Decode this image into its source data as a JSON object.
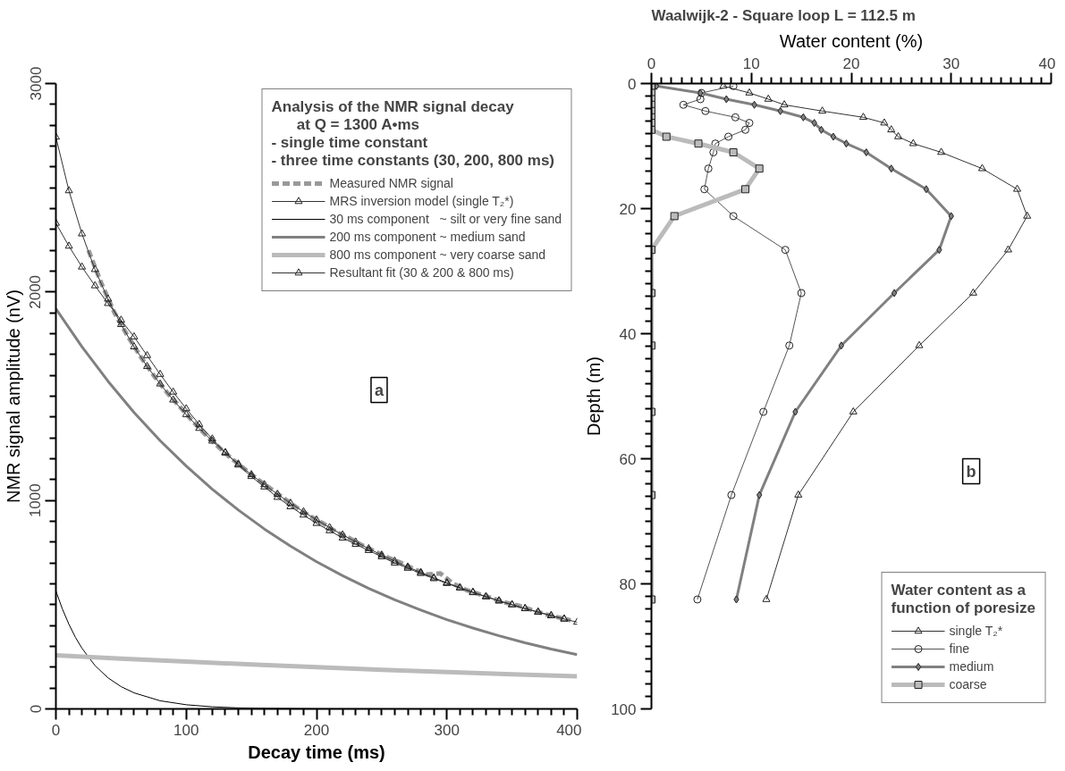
{
  "chart_data": [
    {
      "type": "line",
      "xlabel": "Decay time (ms)",
      "ylabel": "NMR signal amplitude (nV)",
      "legend_title": "Analysis of the NMR signal decay\n      at Q = 1300 A•ms\n- single time constant\n- three time constants (30, 200, 800 ms)",
      "xlim": [
        0,
        400
      ],
      "xticks": [
        0,
        100,
        200,
        300,
        400
      ],
      "ylim": [
        0,
        3000
      ],
      "yticks": [
        0,
        1000,
        2000,
        3000
      ],
      "grid": false,
      "legend": "top right",
      "annotations": [
        "a"
      ],
      "series": [
        {
          "name": "Measured NMR signal",
          "color": "#999999",
          "line_style": "dashed",
          "marker": "none",
          "x": [
            25,
            35,
            45,
            55,
            65,
            75,
            85,
            95,
            105,
            115,
            125,
            135,
            145,
            155,
            165,
            175,
            185,
            195,
            205,
            215,
            225,
            235,
            245,
            255,
            265,
            275,
            285,
            295,
            305,
            315,
            325,
            335,
            345,
            355,
            365,
            375,
            385,
            395
          ],
          "values": [
            2200,
            2040,
            1900,
            1790,
            1690,
            1600,
            1520,
            1450,
            1380,
            1315,
            1255,
            1200,
            1150,
            1100,
            1055,
            1010,
            965,
            925,
            890,
            850,
            820,
            785,
            755,
            725,
            700,
            670,
            645,
            650,
            600,
            570,
            550,
            530,
            510,
            495,
            475,
            455,
            440,
            425
          ]
        },
        {
          "name": "MRS inversion model (single T₂*)",
          "color": "#333333",
          "line_style": "solid",
          "marker": "triangle",
          "x": [
            0,
            10,
            20,
            30,
            40,
            50,
            60,
            70,
            80,
            90,
            100,
            110,
            120,
            130,
            140,
            150,
            160,
            170,
            180,
            190,
            200,
            210,
            220,
            230,
            240,
            250,
            260,
            270,
            280,
            290,
            300,
            310,
            320,
            330,
            340,
            350,
            360,
            370,
            380,
            390
          ],
          "values": [
            2330,
            2220,
            2120,
            2030,
            1945,
            1865,
            1785,
            1695,
            1605,
            1520,
            1440,
            1365,
            1295,
            1230,
            1170,
            1115,
            1065,
            1015,
            970,
            930,
            890,
            855,
            820,
            790,
            760,
            730,
            700,
            675,
            650,
            625,
            602,
            580,
            558,
            538,
            518,
            500,
            482,
            465,
            448,
            432
          ]
        },
        {
          "name": "30 ms component   ~ silt or very fine sand",
          "color": "#000000",
          "line_style": "solid",
          "marker": "none",
          "x": [
            0,
            5,
            10,
            15,
            20,
            30,
            40,
            50,
            60,
            80,
            100,
            120,
            140,
            160,
            200,
            300,
            400
          ],
          "values": [
            566,
            479,
            406,
            343,
            291,
            208,
            149,
            107,
            77,
            39,
            20,
            10,
            5,
            3,
            1,
            0,
            0
          ]
        },
        {
          "name": "200 ms component ~ medium sand",
          "color": "#808080",
          "line_style": "solid",
          "marker": "none",
          "x": [
            0,
            20,
            40,
            60,
            80,
            100,
            120,
            140,
            160,
            180,
            200,
            220,
            240,
            260,
            280,
            300,
            320,
            340,
            360,
            380,
            400
          ],
          "values": [
            1920,
            1737,
            1572,
            1422,
            1287,
            1165,
            1054,
            954,
            863,
            781,
            706,
            639,
            578,
            523,
            474,
            428,
            388,
            351,
            317,
            287,
            260
          ]
        },
        {
          "name": "800 ms component ~ very coarse sand",
          "color": "#bbbbbb",
          "line_style": "solid",
          "marker": "none",
          "x": [
            0,
            50,
            100,
            150,
            200,
            250,
            300,
            350,
            400
          ],
          "values": [
            257,
            241,
            227,
            213,
            200,
            188,
            177,
            166,
            156
          ]
        },
        {
          "name": "Resultant fit (30 & 200 & 800 ms)",
          "color": "#333333",
          "line_style": "solid",
          "marker": "triangle",
          "x": [
            0,
            10,
            20,
            30,
            40,
            50,
            60,
            70,
            80,
            90,
            100,
            110,
            120,
            130,
            140,
            150,
            160,
            170,
            180,
            190,
            200,
            210,
            220,
            230,
            240,
            250,
            260,
            270,
            280,
            290,
            300,
            310,
            320,
            330,
            340,
            350,
            360,
            370,
            380,
            390,
            400
          ],
          "values": [
            2743,
            2486,
            2279,
            2108,
            1966,
            1844,
            1737,
            1643,
            1559,
            1482,
            1412,
            1346,
            1285,
            1228,
            1175,
            1124,
            1076,
            1030,
            987,
            946,
            907,
            870,
            835,
            801,
            769,
            738,
            709,
            681,
            655,
            629,
            605,
            582,
            560,
            539,
            519,
            500,
            481,
            464,
            447,
            431,
            416
          ]
        }
      ]
    },
    {
      "type": "line",
      "title": "Waalwijk-2 - Square loop L = 112.5 m",
      "xlabel": "Water content (%)",
      "ylabel": "Depth (m)",
      "legend_title": "Water content as a\nfunction of poresize",
      "xlim": [
        0,
        40
      ],
      "xticks": [
        0,
        10,
        20,
        30,
        40
      ],
      "ylim": [
        100,
        0
      ],
      "yticks": [
        0,
        20,
        40,
        60,
        80,
        100
      ],
      "grid": false,
      "legend": "bottom right",
      "annotations": [
        "b"
      ],
      "series": [
        {
          "name": "single T₂*",
          "color": "#333333",
          "line_style": "solid",
          "marker": "triangle",
          "x": [
            7.2,
            9.8,
            11.7,
            13.3,
            17.1,
            21.2,
            23.3,
            24.0,
            24.7,
            26.2,
            29.0,
            33.1,
            36.6,
            37.6,
            35.7,
            32.2,
            26.8,
            20.2,
            14.7,
            11.5
          ],
          "values": [
            0.4,
            1.5,
            2.5,
            3.4,
            4.4,
            5.4,
            6.3,
            7.4,
            8.5,
            9.6,
            11,
            13.6,
            16.9,
            21.2,
            26.6,
            33.5,
            41.9,
            52.5,
            65.8,
            82.5
          ]
        },
        {
          "name": "fine",
          "color": "#555555",
          "line_style": "solid",
          "marker": "circle",
          "x": [
            8.2,
            5.0,
            4.9,
            3.2,
            5.4,
            8.4,
            9.8,
            9.4,
            7.7,
            6.4,
            6.2,
            5.7,
            5.3,
            8.2,
            13.4,
            15.0,
            13.8,
            11.2,
            8.0,
            4.6
          ],
          "values": [
            0.4,
            1.5,
            2.5,
            3.4,
            4.4,
            5.4,
            6.3,
            7.4,
            8.5,
            9.6,
            11,
            13.6,
            16.9,
            21.2,
            26.6,
            33.5,
            41.9,
            52.5,
            65.8,
            82.5
          ]
        },
        {
          "name": "medium",
          "color": "#808080",
          "line_style": "solid",
          "marker": "diamond",
          "x": [
            0.5,
            4.9,
            7.5,
            10.3,
            12.9,
            15.2,
            16.3,
            17.0,
            18.2,
            19.5,
            21.5,
            24.0,
            27.5,
            30.0,
            28.8,
            24.3,
            19.0,
            14.4,
            10.8,
            8.5
          ],
          "values": [
            0.4,
            1.5,
            2.5,
            3.4,
            4.4,
            5.4,
            6.3,
            7.4,
            8.5,
            9.6,
            11,
            13.6,
            16.9,
            21.2,
            26.6,
            33.5,
            41.9,
            52.5,
            65.8,
            82.5
          ]
        },
        {
          "name": "coarse",
          "color": "#bbbbbb",
          "line_style": "solid",
          "marker": "square",
          "x": [
            0,
            0,
            0,
            0,
            0,
            0,
            0,
            0,
            1.5,
            4.7,
            8.2,
            10.8,
            9.4,
            2.3,
            0,
            0,
            0,
            0,
            0,
            0
          ],
          "values": [
            0.4,
            1.5,
            2.5,
            3.4,
            4.4,
            5.4,
            6.3,
            7.4,
            8.5,
            9.6,
            11,
            13.6,
            16.9,
            21.2,
            26.6,
            33.5,
            41.9,
            52.5,
            65.8,
            82.5
          ]
        }
      ]
    }
  ]
}
